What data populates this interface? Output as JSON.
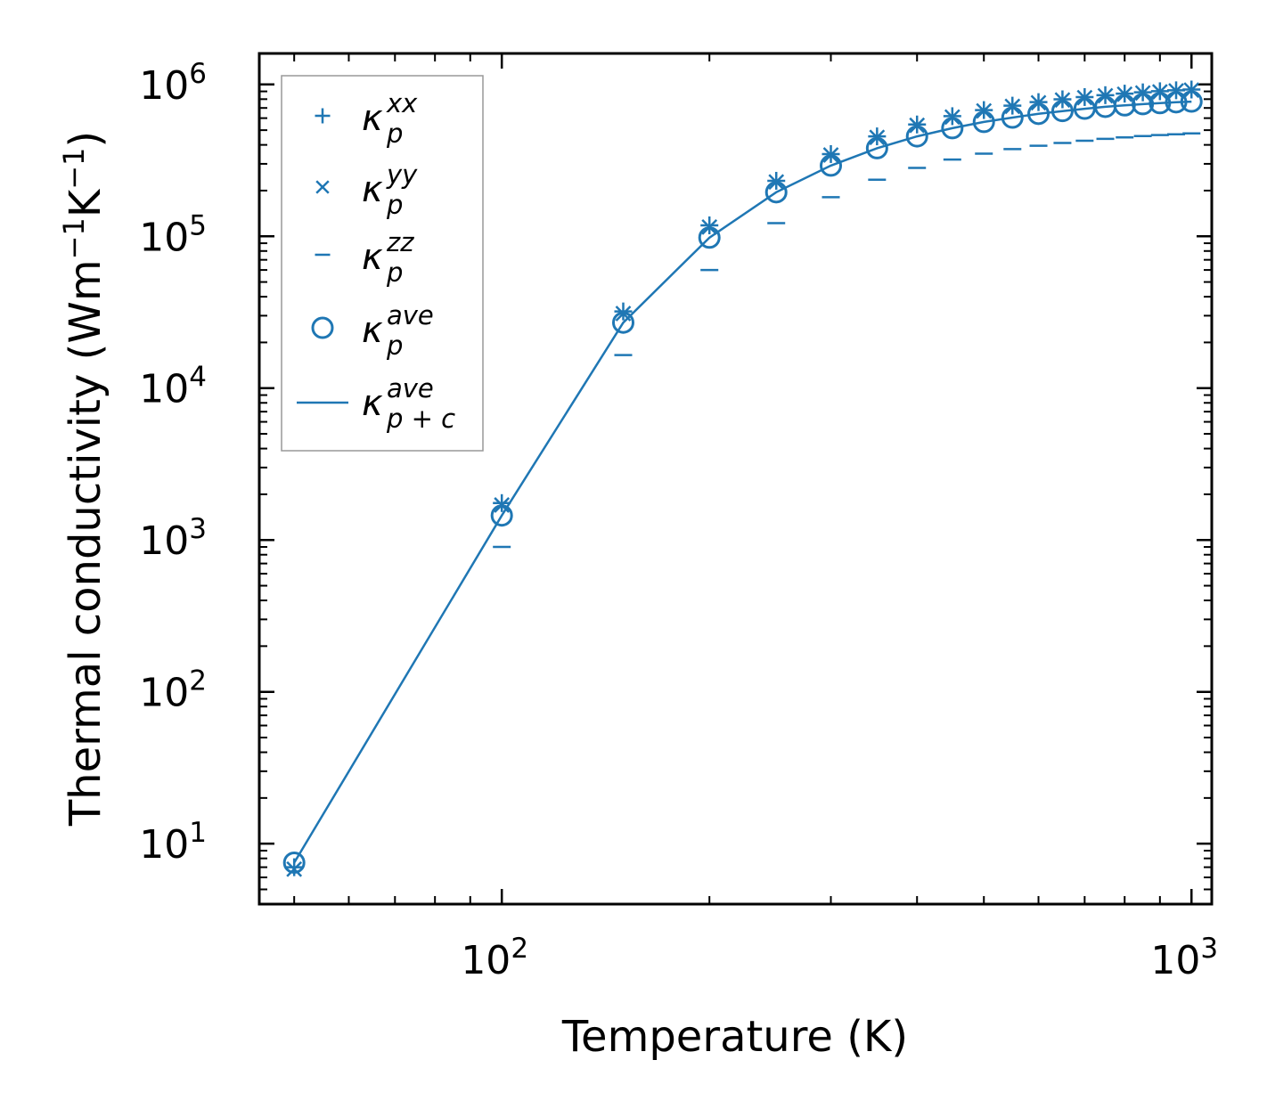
{
  "chart_data": {
    "type": "line",
    "xscale": "log",
    "yscale": "log",
    "xlabel": "Temperature (K)",
    "ylabel_parts": [
      "Thermal conductivity (Wm",
      "−1",
      "K",
      "−1",
      ")"
    ],
    "xlim": [
      44.5,
      1070
    ],
    "ylim": [
      4.0,
      1600000
    ],
    "xticks": [
      {
        "value": 100,
        "base": "10",
        "exp": "2"
      },
      {
        "value": 1000,
        "base": "10",
        "exp": "3"
      }
    ],
    "yticks": [
      {
        "value": 10,
        "base": "10",
        "exp": "1"
      },
      {
        "value": 100,
        "base": "10",
        "exp": "2"
      },
      {
        "value": 1000,
        "base": "10",
        "exp": "3"
      },
      {
        "value": 10000,
        "base": "10",
        "exp": "4"
      },
      {
        "value": 100000,
        "base": "10",
        "exp": "5"
      },
      {
        "value": 1000000,
        "base": "10",
        "exp": "6"
      }
    ],
    "color": "#1f77b4",
    "x": [
      50,
      100,
      150,
      200,
      250,
      300,
      350,
      400,
      450,
      500,
      550,
      600,
      650,
      700,
      750,
      800,
      850,
      900,
      950,
      1000
    ],
    "series": [
      {
        "name": "kappa_p_xx",
        "label": "κ",
        "sub": "p",
        "sup": "xx",
        "marker": "plus",
        "values": [
          7.0,
          1750,
          32000,
          118000,
          232000,
          348000,
          455000,
          545000,
          618000,
          678000,
          725000,
          765000,
          798000,
          826000,
          850000,
          870000,
          887000,
          902000,
          915000,
          926000
        ]
      },
      {
        "name": "kappa_p_yy",
        "label": "κ",
        "sub": "p",
        "sup": "yy",
        "marker": "x",
        "values": [
          6.8,
          1700,
          31000,
          115000,
          228000,
          343000,
          448000,
          538000,
          610000,
          670000,
          717000,
          757000,
          790000,
          818000,
          842000,
          862000,
          879000,
          894000,
          907000,
          918000
        ]
      },
      {
        "name": "kappa_p_zz",
        "label": "κ",
        "sub": "p",
        "sup": "zz",
        "marker": "hline",
        "values": [
          null,
          900,
          16500,
          60000,
          122000,
          181000,
          236000,
          282000,
          320000,
          350000,
          375000,
          395000,
          412000,
          426000,
          438000,
          448000,
          457000,
          464000,
          470000,
          476000
        ]
      },
      {
        "name": "kappa_p_ave",
        "label": "κ",
        "sub": "p",
        "sup": "ave",
        "marker": "circle",
        "values": [
          7.5,
          1450,
          27000,
          98000,
          195000,
          292000,
          380000,
          455000,
          515000,
          566000,
          605000,
          640000,
          668000,
          692000,
          712000,
          728000,
          742000,
          753000,
          763000,
          771000
        ]
      },
      {
        "name": "kappa_pc_ave",
        "label": "κ",
        "sub": "p + c",
        "sup": "ave",
        "marker": "line",
        "values": [
          7.5,
          1450,
          27000,
          98000,
          195000,
          292000,
          380000,
          455000,
          515000,
          566000,
          605000,
          640000,
          668000,
          692000,
          712000,
          728000,
          742000,
          753000,
          763000,
          771000
        ]
      }
    ],
    "legend_position": "top-left"
  }
}
